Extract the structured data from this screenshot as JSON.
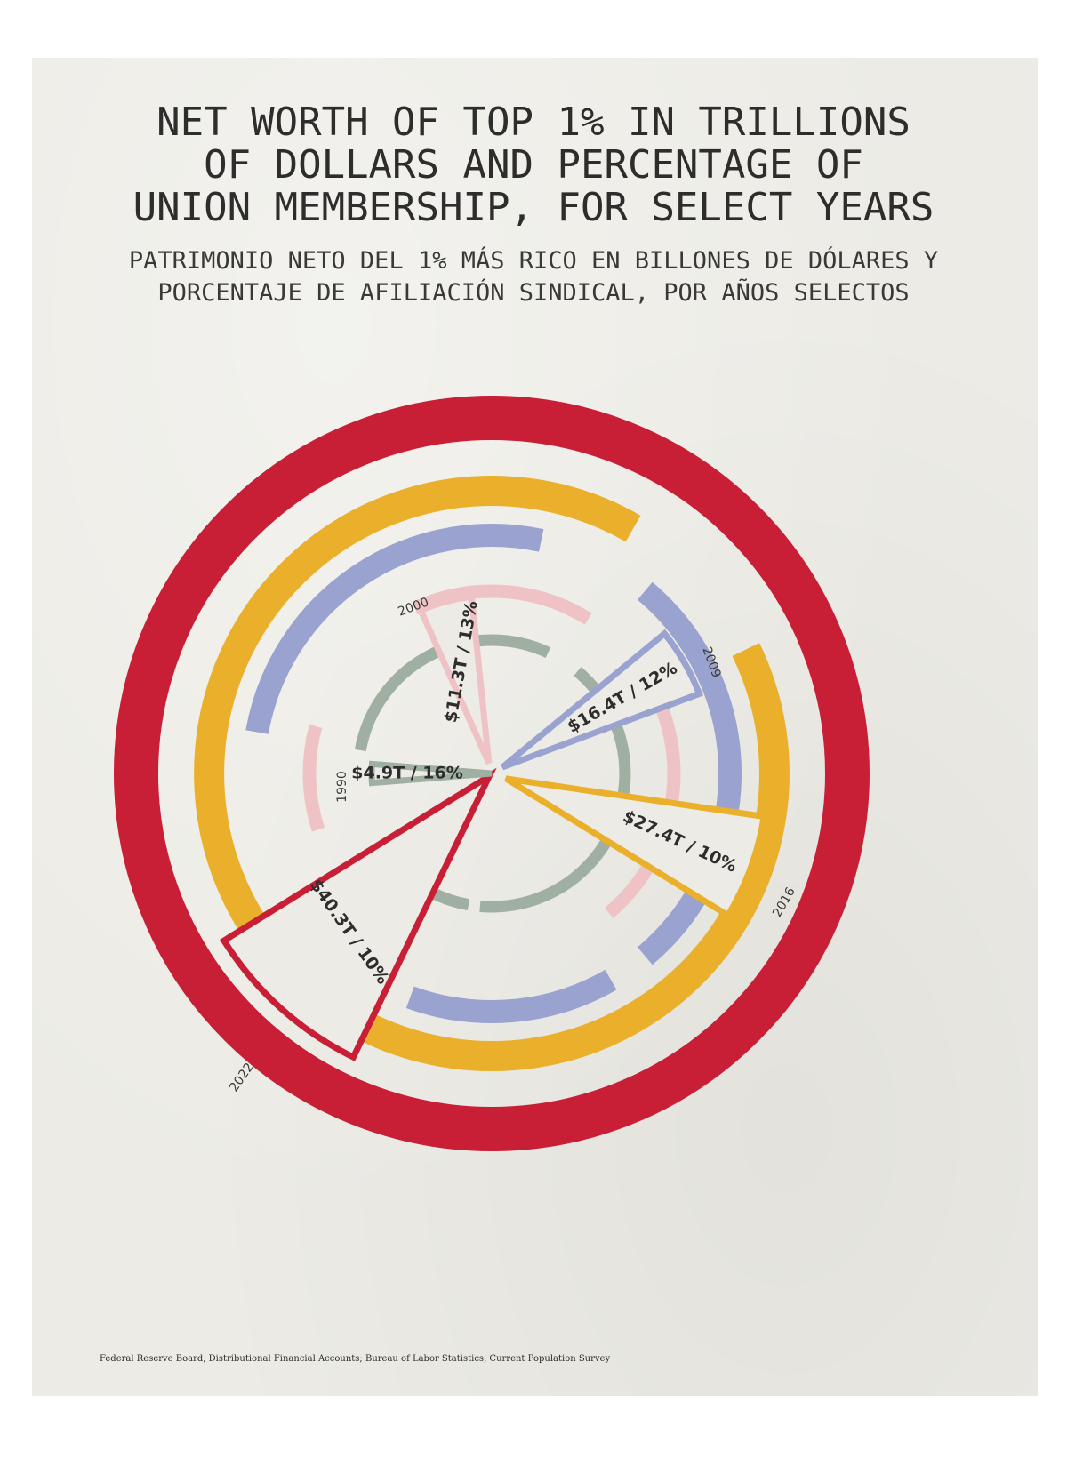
{
  "title": {
    "lines": [
      "NET WORTH OF TOP 1% IN TRILLIONS",
      "OF DOLLARS AND PERCENTAGE OF",
      "UNION MEMBERSHIP, FOR SELECT YEARS"
    ]
  },
  "subtitle": {
    "lines": [
      "PATRIMONIO NETO DEL 1% MÁS RICO EN BILLONES DE DÓLARES Y",
      "PORCENTAJE DE AFILIACIÓN SINDICAL, POR AÑOS SELECTOS"
    ]
  },
  "source": "Federal Reserve Board, Distributional Financial Accounts;  Bureau of Labor Statistics, Current Population Survey",
  "colors": {
    "background": "#ecebe5",
    "1990": "#9fb0a3",
    "2000": "#efc3c5",
    "2009": "#9aa3d0",
    "2016": "#ebb02b",
    "2022": "#c81f37",
    "text": "#2e2d2b"
  },
  "chart_data": {
    "type": "radial",
    "series": [
      {
        "year": "1990",
        "net_worth_trillions": 4.9,
        "union_membership_pct": 16,
        "label": "$4.9T / 16%"
      },
      {
        "year": "2000",
        "net_worth_trillions": 11.3,
        "union_membership_pct": 13,
        "label": "$11.3T / 13%"
      },
      {
        "year": "2009",
        "net_worth_trillions": 16.4,
        "union_membership_pct": 12,
        "label": "$16.4T / 12%"
      },
      {
        "year": "2016",
        "net_worth_trillions": 27.4,
        "union_membership_pct": 10,
        "label": "$27.4T / 10%"
      },
      {
        "year": "2022",
        "net_worth_trillions": 40.3,
        "union_membership_pct": 10,
        "label": "$40.3T / 10%"
      }
    ]
  }
}
